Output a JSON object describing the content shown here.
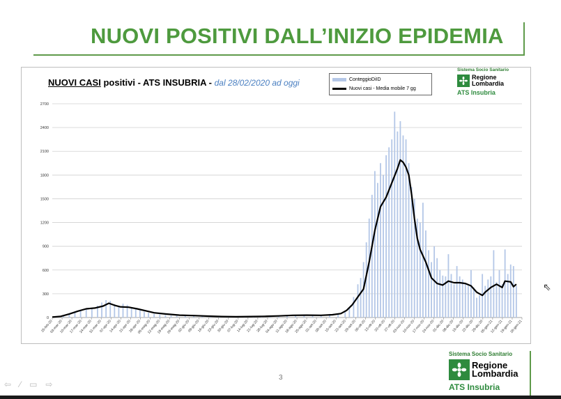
{
  "slide": {
    "title": "NUOVI POSITIVI DALL’INIZIO EPIDEMIA",
    "page_number": "3"
  },
  "logo": {
    "system": "Sistema Socio Sanitario",
    "region_line1": "Regione",
    "region_line2": "Lombardia",
    "ats": "ATS Insubria"
  },
  "colors": {
    "title_green": "#4e9a3e",
    "bars": "#b4c7e7",
    "line": "#000000",
    "subtitle_blue": "#4a7fc1"
  },
  "chart_data": {
    "type": "bar",
    "title_main": "NUOVI CASI",
    "title_rest": " positivi - ATS INSUBRIA - ",
    "subtitle": "dal 28/02/2020 ad oggi",
    "legend_position": "top-right",
    "grid": true,
    "ylim": [
      0,
      2700
    ],
    "yticks": [
      0,
      300,
      600,
      900,
      1200,
      1500,
      1800,
      2100,
      2400,
      2700
    ],
    "xlim_days": [
      0,
      332
    ],
    "date_ticks": [
      "25-feb-20",
      "03-mar-20",
      "10-mar-20",
      "17-mar-20",
      "24-mar-20",
      "31-mar-20",
      "07-apr-20",
      "14-apr-20",
      "21-apr-20",
      "28-apr-20",
      "05-mag-20",
      "12-mag-20",
      "19-mag-20",
      "26-mag-20",
      "02-giu-20",
      "09-giu-20",
      "16-giu-20",
      "23-giu-20",
      "30-giu-20",
      "07-lug-20",
      "14-lug-20",
      "21-lug-20",
      "28-lug-20",
      "04-ago-20",
      "11-ago-20",
      "18-ago-20",
      "25-ago-20",
      "01-set-20",
      "08-set-20",
      "15-set-20",
      "22-set-20",
      "29-set-20",
      "06-ott-20",
      "13-ott-20",
      "20-ott-20",
      "27-ott-20",
      "03-nov-20",
      "10-nov-20",
      "17-nov-20",
      "24-nov-20",
      "01-dic-20",
      "08-dic-20",
      "15-dic-20",
      "22-dic-20",
      "29-dic-20",
      "05-gen-21",
      "12-gen-21",
      "19-gen-21",
      "26-gen-21"
    ],
    "series": [
      {
        "name": "ConteggioDiID",
        "kind": "bar",
        "points": [
          [
            3,
            5
          ],
          [
            8,
            20
          ],
          [
            12,
            45
          ],
          [
            16,
            75
          ],
          [
            20,
            100
          ],
          [
            24,
            115
          ],
          [
            28,
            125
          ],
          [
            32,
            150
          ],
          [
            35,
            190
          ],
          [
            38,
            220
          ],
          [
            41,
            210
          ],
          [
            44,
            170
          ],
          [
            47,
            150
          ],
          [
            50,
            175
          ],
          [
            53,
            160
          ],
          [
            56,
            130
          ],
          [
            59,
            110
          ],
          [
            62,
            90
          ],
          [
            65,
            75
          ],
          [
            68,
            60
          ],
          [
            72,
            45
          ],
          [
            76,
            38
          ],
          [
            80,
            30
          ],
          [
            84,
            25
          ],
          [
            88,
            22
          ],
          [
            94,
            18
          ],
          [
            100,
            25
          ],
          [
            106,
            20
          ],
          [
            112,
            12
          ],
          [
            118,
            10
          ],
          [
            124,
            12
          ],
          [
            130,
            10
          ],
          [
            136,
            12
          ],
          [
            142,
            10
          ],
          [
            148,
            15
          ],
          [
            154,
            18
          ],
          [
            160,
            22
          ],
          [
            166,
            30
          ],
          [
            172,
            35
          ],
          [
            178,
            30
          ],
          [
            184,
            35
          ],
          [
            190,
            30
          ],
          [
            196,
            45
          ],
          [
            202,
            45
          ],
          [
            207,
            70
          ],
          [
            210,
            130
          ],
          [
            213,
            260
          ],
          [
            216,
            420
          ],
          [
            218,
            500
          ],
          [
            220,
            700
          ],
          [
            222,
            950
          ],
          [
            224,
            1250
          ],
          [
            226,
            1550
          ],
          [
            228,
            1850
          ],
          [
            230,
            1700
          ],
          [
            232,
            1950
          ],
          [
            234,
            1800
          ],
          [
            236,
            2050
          ],
          [
            238,
            2150
          ],
          [
            240,
            2250
          ],
          [
            242,
            2600
          ],
          [
            244,
            2350
          ],
          [
            246,
            2480
          ],
          [
            248,
            2300
          ],
          [
            250,
            2250
          ],
          [
            252,
            1950
          ],
          [
            254,
            1650
          ],
          [
            256,
            1500
          ],
          [
            258,
            1250
          ],
          [
            260,
            1200
          ],
          [
            262,
            1450
          ],
          [
            264,
            1100
          ],
          [
            266,
            850
          ],
          [
            268,
            700
          ],
          [
            270,
            900
          ],
          [
            272,
            750
          ],
          [
            274,
            600
          ],
          [
            276,
            530
          ],
          [
            278,
            520
          ],
          [
            280,
            800
          ],
          [
            282,
            550
          ],
          [
            284,
            420
          ],
          [
            286,
            650
          ],
          [
            288,
            520
          ],
          [
            290,
            480
          ],
          [
            292,
            430
          ],
          [
            294,
            400
          ],
          [
            296,
            600
          ],
          [
            298,
            380
          ],
          [
            300,
            250
          ],
          [
            302,
            280
          ],
          [
            304,
            550
          ],
          [
            306,
            400
          ],
          [
            308,
            480
          ],
          [
            310,
            520
          ],
          [
            312,
            850
          ],
          [
            314,
            450
          ],
          [
            316,
            600
          ],
          [
            318,
            420
          ],
          [
            320,
            860
          ],
          [
            322,
            550
          ],
          [
            324,
            670
          ],
          [
            326,
            650
          ],
          [
            328,
            400
          ]
        ]
      },
      {
        "name": "Nuovi casi - Media mobile 7 gg",
        "kind": "line",
        "points": [
          [
            0,
            5
          ],
          [
            6,
            15
          ],
          [
            12,
            45
          ],
          [
            18,
            80
          ],
          [
            24,
            110
          ],
          [
            30,
            120
          ],
          [
            36,
            145
          ],
          [
            40,
            180
          ],
          [
            44,
            155
          ],
          [
            48,
            135
          ],
          [
            54,
            130
          ],
          [
            60,
            110
          ],
          [
            66,
            85
          ],
          [
            72,
            60
          ],
          [
            80,
            45
          ],
          [
            90,
            30
          ],
          [
            100,
            25
          ],
          [
            110,
            18
          ],
          [
            120,
            12
          ],
          [
            130,
            10
          ],
          [
            140,
            12
          ],
          [
            150,
            15
          ],
          [
            160,
            20
          ],
          [
            170,
            28
          ],
          [
            180,
            30
          ],
          [
            190,
            28
          ],
          [
            198,
            35
          ],
          [
            204,
            50
          ],
          [
            208,
            90
          ],
          [
            212,
            160
          ],
          [
            216,
            260
          ],
          [
            220,
            360
          ],
          [
            224,
            700
          ],
          [
            228,
            1100
          ],
          [
            232,
            1400
          ],
          [
            236,
            1520
          ],
          [
            240,
            1700
          ],
          [
            244,
            1880
          ],
          [
            246,
            1990
          ],
          [
            248,
            1960
          ],
          [
            250,
            1900
          ],
          [
            252,
            1800
          ],
          [
            254,
            1550
          ],
          [
            256,
            1250
          ],
          [
            258,
            1000
          ],
          [
            260,
            860
          ],
          [
            264,
            700
          ],
          [
            268,
            500
          ],
          [
            272,
            430
          ],
          [
            276,
            410
          ],
          [
            280,
            460
          ],
          [
            284,
            440
          ],
          [
            288,
            440
          ],
          [
            292,
            430
          ],
          [
            296,
            400
          ],
          [
            300,
            320
          ],
          [
            302,
            300
          ],
          [
            304,
            280
          ],
          [
            306,
            320
          ],
          [
            310,
            380
          ],
          [
            314,
            420
          ],
          [
            318,
            380
          ],
          [
            320,
            460
          ],
          [
            324,
            450
          ],
          [
            326,
            390
          ],
          [
            328,
            420
          ]
        ]
      }
    ]
  }
}
